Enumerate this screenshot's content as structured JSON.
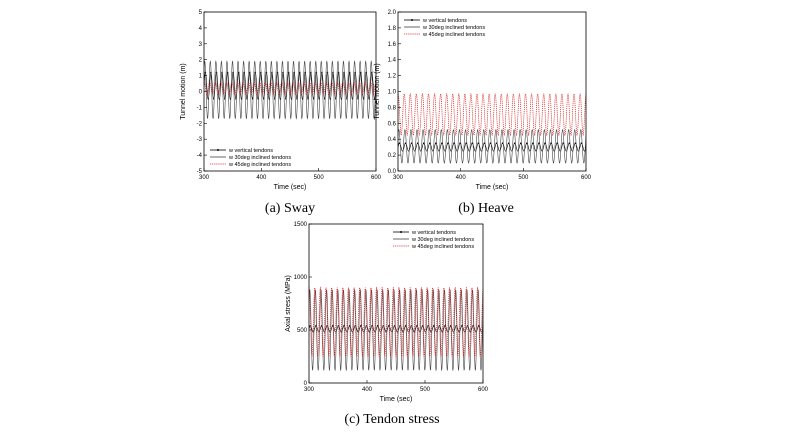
{
  "captions": [
    "(a)  Sway",
    "(b)  Heave",
    "(c)  Tendon  stress"
  ],
  "legend_entries": [
    "w vertical tendons",
    "w 30deg inclined tendons",
    "w 45deg inclined tendons"
  ],
  "series_colors": [
    "#000000",
    "#444444",
    "#d62020"
  ],
  "chart_data": [
    {
      "type": "line",
      "xlabel": "Time (sec)",
      "ylabel": "Tunnel motion (m)",
      "xlim": [
        300,
        600
      ],
      "ylim": [
        -5,
        5
      ],
      "xticks": [
        300,
        400,
        500,
        600
      ],
      "yticks": [
        -5,
        -4,
        -3,
        -2,
        -1,
        0,
        1,
        2,
        3,
        4,
        5
      ],
      "legend_position": "lower-left",
      "cycles": 31,
      "series": [
        {
          "name": "w vertical tendons",
          "min": -0.5,
          "max": 1.2,
          "color": "#000000",
          "style": "solid-marker"
        },
        {
          "name": "w 30deg inclined tendons",
          "min": -1.7,
          "max": 1.9,
          "color": "#444444",
          "style": "solid"
        },
        {
          "name": "w 45deg inclined tendons",
          "min": -0.2,
          "max": 0.6,
          "color": "#d62020",
          "style": "dotted"
        }
      ]
    },
    {
      "type": "line",
      "xlabel": "Time (sec)",
      "ylabel": "Tunnel motion (m)",
      "xlim": [
        300,
        600
      ],
      "ylim": [
        0,
        2.0
      ],
      "xticks": [
        300,
        400,
        500,
        600
      ],
      "yticks": [
        0.0,
        0.2,
        0.4,
        0.6,
        0.8,
        1.0,
        1.2,
        1.4,
        1.6,
        1.8,
        2.0
      ],
      "legend_position": "upper-left",
      "cycles": 31,
      "series": [
        {
          "name": "w vertical tendons",
          "min": 0.25,
          "max": 0.35,
          "color": "#000000",
          "style": "solid-marker"
        },
        {
          "name": "w 30deg inclined tendons",
          "min": 0.1,
          "max": 0.52,
          "color": "#444444",
          "style": "solid"
        },
        {
          "name": "w 45deg inclined tendons",
          "min": 0.45,
          "max": 0.97,
          "color": "#d62020",
          "style": "dotted"
        }
      ]
    },
    {
      "type": "line",
      "xlabel": "Time (sec)",
      "ylabel": "Axial stress (MPa)",
      "xlim": [
        300,
        600
      ],
      "ylim": [
        0,
        1500
      ],
      "xticks": [
        300,
        400,
        500,
        600
      ],
      "yticks": [
        0,
        500,
        1000,
        1500
      ],
      "legend_position": "upper-right",
      "cycles": 31,
      "series": [
        {
          "name": "w vertical tendons",
          "min": 480,
          "max": 540,
          "color": "#000000",
          "style": "solid-marker"
        },
        {
          "name": "w 30deg inclined tendons",
          "min": 120,
          "max": 880,
          "color": "#444444",
          "style": "solid"
        },
        {
          "name": "w 45deg inclined tendons",
          "min": 250,
          "max": 900,
          "color": "#d62020",
          "style": "dotted"
        }
      ]
    }
  ]
}
